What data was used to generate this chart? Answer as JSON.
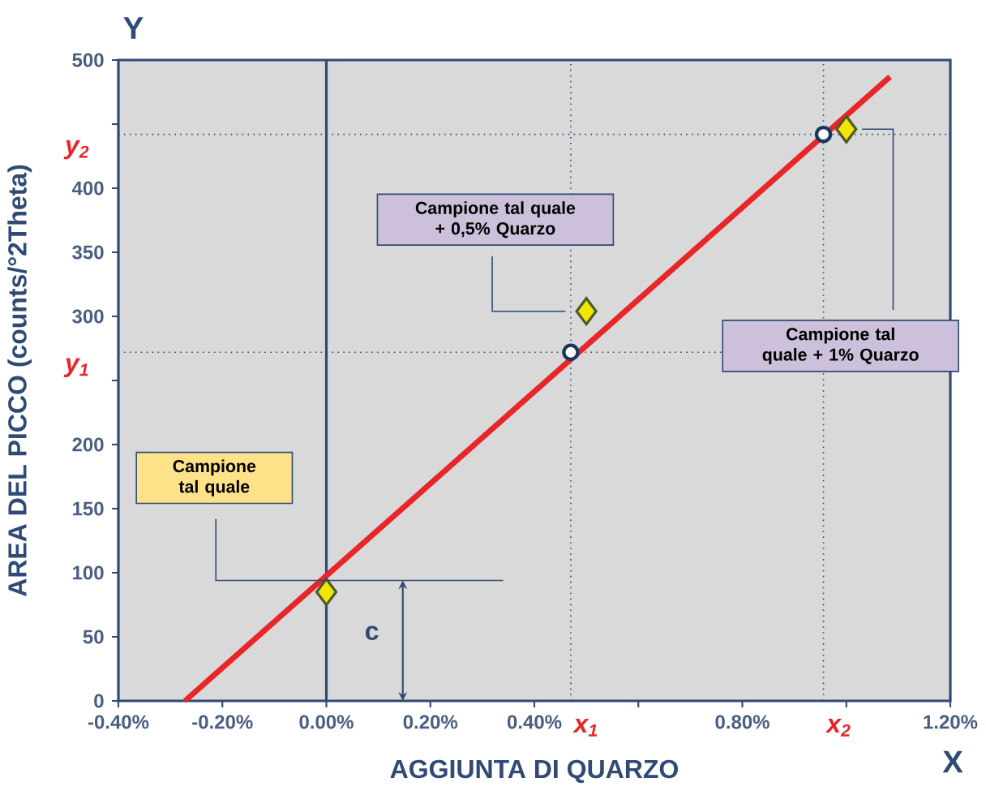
{
  "chart_data": {
    "type": "scatter",
    "xlabel": "AGGIUNTA DI QUARZO",
    "ylabel": "AREA DEL PICCO (counts/°2Theta)",
    "xlim": [
      -0.4,
      1.2
    ],
    "ylim": [
      0,
      500
    ],
    "xticks": [
      {
        "value": -0.4,
        "label": "-0.40%"
      },
      {
        "value": -0.2,
        "label": "-0.20%"
      },
      {
        "value": 0,
        "label": "0.00%"
      },
      {
        "value": 0.2,
        "label": "0.20%"
      },
      {
        "value": 0.4,
        "label": "0.40%"
      },
      {
        "value": 0.6,
        "label": null
      },
      {
        "value": 0.8,
        "label": "0.80%"
      },
      {
        "value": 1.0,
        "label": null
      },
      {
        "value": 1.2,
        "label": "1.20%"
      }
    ],
    "yticks": [
      0,
      50,
      100,
      150,
      200,
      {
        "value": 250,
        "label": null
      },
      300,
      350,
      400,
      {
        "value": 450,
        "label": null
      },
      500
    ],
    "series": [
      {
        "type": "line",
        "color": "#e8262a",
        "x": [
          -0.272,
          1.084
        ],
        "values": [
          0,
          487
        ],
        "marker": "none"
      },
      {
        "color": "#f2e600",
        "x": [
          0,
          0.5,
          1.0
        ],
        "values": [
          85,
          304,
          446
        ],
        "marker": "diamond"
      },
      {
        "color": "#17375e",
        "x": [
          0.47,
          0.956
        ],
        "values": [
          272,
          442
        ],
        "marker": "circle"
      }
    ],
    "ref_lines": [
      {
        "axis": "x",
        "value": 0,
        "color": "#2f4a75",
        "line_style": "solid"
      },
      {
        "axis": "y",
        "value": 272,
        "label": "y$_{1}$",
        "color": "#2f4a75",
        "line_style": "dotted"
      },
      {
        "axis": "y",
        "value": 442,
        "label": "y$_{2}$",
        "color": "#2f4a75",
        "line_style": "dotted"
      },
      {
        "axis": "x",
        "value": 0.47,
        "label": "x$_{1}$",
        "color": "#2f4a75",
        "line_style": "dotted"
      },
      {
        "axis": "x",
        "value": 0.956,
        "label": "x$_{2}$",
        "color": "#2f4a75",
        "line_style": "dotted"
      }
    ],
    "annotations": [
      "Campione tal quale",
      {
        "text": "Campione tal quale + 0,5% Quarzo",
        "x": 0.46,
        "y": 304
      },
      {
        "text": "Campione tal quale + 1% Quarzo",
        "x": 1.03,
        "y": 446
      },
      "c",
      "Y",
      "X"
    ],
    "grid": false
  }
}
